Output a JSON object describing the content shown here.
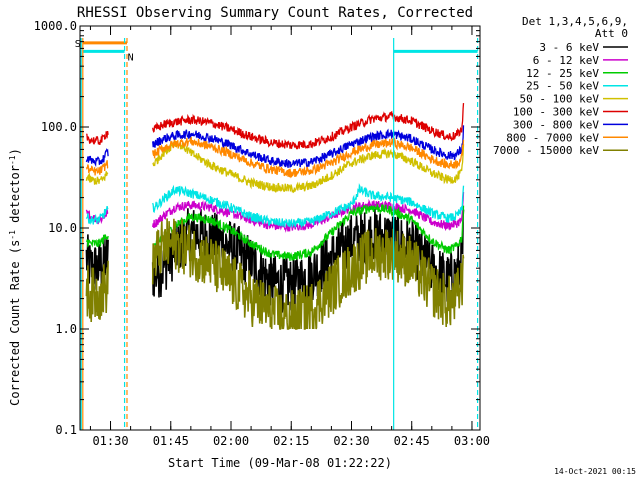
{
  "chart_data": {
    "type": "line",
    "title": "RHESSI Observing Summary Count Rates, Corrected",
    "xlabel": "Start Time (09-Mar-08 01:22:22)",
    "ylabel": "Corrected Count Rate (s⁻¹ detector⁻¹)",
    "ylabel_parts": [
      "Corrected Count Rate (s",
      "-1",
      " detector",
      "-1",
      ")"
    ],
    "y_scale": "log",
    "ylim": [
      0.1,
      1000
    ],
    "y_ticks": [
      {
        "value": 0.1,
        "label": "0.1"
      },
      {
        "value": 1,
        "label": "1.0"
      },
      {
        "value": 10,
        "label": "10.0"
      },
      {
        "value": 100,
        "label": "100.0"
      },
      {
        "value": 1000,
        "label": "1000.0"
      }
    ],
    "x_range_minutes": [
      82.4,
      182.0
    ],
    "x_ticks": [
      {
        "minute": 90,
        "label": "01:30"
      },
      {
        "minute": 105,
        "label": "01:45"
      },
      {
        "minute": 120,
        "label": "02:00"
      },
      {
        "minute": 135,
        "label": "02:15"
      },
      {
        "minute": 150,
        "label": "02:30"
      },
      {
        "minute": 165,
        "label": "02:45"
      },
      {
        "minute": 180,
        "label": "03:00"
      }
    ],
    "legend_header": [
      "Det 1,3,4,5,6,9,",
      "Att 0"
    ],
    "legend_position": "right",
    "series": [
      {
        "name": "3 - 6 keV",
        "color": "#000000",
        "points": [
          [
            84,
            5
          ],
          [
            85,
            4
          ],
          [
            87,
            4
          ],
          [
            88,
            4.5
          ],
          [
            89,
            5
          ],
          [
            101,
            3.5
          ],
          [
            103,
            4
          ],
          [
            106,
            6
          ],
          [
            110,
            9
          ],
          [
            115,
            8
          ],
          [
            120,
            6.5
          ],
          [
            125,
            4.5
          ],
          [
            130,
            3
          ],
          [
            133,
            2.7
          ],
          [
            136,
            2.8
          ],
          [
            140,
            3.5
          ],
          [
            145,
            5
          ],
          [
            150,
            7.5
          ],
          [
            155,
            8.5
          ],
          [
            160,
            8
          ],
          [
            165,
            6.5
          ],
          [
            170,
            4
          ],
          [
            174,
            3
          ],
          [
            176,
            3.5
          ],
          [
            177.5,
            4.5
          ],
          [
            178,
            12
          ]
        ]
      },
      {
        "name": "6 - 12 keV",
        "color": "#cc00cc",
        "points": [
          [
            84,
            14
          ],
          [
            85,
            13
          ],
          [
            87,
            12
          ],
          [
            88,
            12.5
          ],
          [
            89,
            14
          ],
          [
            101,
            11
          ],
          [
            103,
            13
          ],
          [
            106,
            16
          ],
          [
            110,
            17
          ],
          [
            115,
            16
          ],
          [
            120,
            14
          ],
          [
            125,
            12
          ],
          [
            130,
            10.5
          ],
          [
            135,
            10.2
          ],
          [
            140,
            10.8
          ],
          [
            145,
            13
          ],
          [
            150,
            16
          ],
          [
            155,
            17
          ],
          [
            160,
            16.5
          ],
          [
            165,
            15
          ],
          [
            170,
            11.5
          ],
          [
            174,
            10.5
          ],
          [
            176,
            11
          ],
          [
            177.5,
            12
          ],
          [
            178,
            25
          ]
        ]
      },
      {
        "name": "12 - 25 keV",
        "color": "#00cc00",
        "points": [
          [
            84,
            7.5
          ],
          [
            85,
            7
          ],
          [
            87,
            7
          ],
          [
            88,
            7.5
          ],
          [
            89,
            8.5
          ],
          [
            101,
            6.5
          ],
          [
            103,
            8
          ],
          [
            106,
            10.5
          ],
          [
            110,
            13
          ],
          [
            115,
            12
          ],
          [
            120,
            9.5
          ],
          [
            125,
            7
          ],
          [
            130,
            5.5
          ],
          [
            135,
            5.2
          ],
          [
            140,
            5.8
          ],
          [
            145,
            9
          ],
          [
            150,
            14
          ],
          [
            155,
            16
          ],
          [
            160,
            15
          ],
          [
            165,
            12
          ],
          [
            170,
            7.5
          ],
          [
            174,
            6
          ],
          [
            176,
            6.5
          ],
          [
            177.5,
            8
          ],
          [
            178,
            20
          ]
        ]
      },
      {
        "name": "25 - 50 keV",
        "color": "#00e5e5",
        "points": [
          [
            84,
            13
          ],
          [
            85,
            12
          ],
          [
            87,
            12
          ],
          [
            88,
            13
          ],
          [
            89,
            15
          ],
          [
            101,
            16
          ],
          [
            103,
            19
          ],
          [
            106,
            24
          ],
          [
            110,
            22
          ],
          [
            115,
            19
          ],
          [
            120,
            16
          ],
          [
            125,
            13
          ],
          [
            130,
            11.5
          ],
          [
            135,
            11
          ],
          [
            140,
            11.5
          ],
          [
            145,
            14
          ],
          [
            150,
            17
          ],
          [
            152,
            24
          ],
          [
            155,
            21
          ],
          [
            160,
            20
          ],
          [
            165,
            18
          ],
          [
            170,
            14
          ],
          [
            174,
            12.5
          ],
          [
            176,
            13
          ],
          [
            177.5,
            15
          ],
          [
            178,
            30
          ]
        ]
      },
      {
        "name": "50 - 100 keV",
        "color": "#d0c000",
        "points": [
          [
            84,
            32
          ],
          [
            85,
            30
          ],
          [
            87,
            29
          ],
          [
            88,
            30
          ],
          [
            89,
            34
          ],
          [
            101,
            44
          ],
          [
            103,
            55
          ],
          [
            106,
            70
          ],
          [
            108,
            65
          ],
          [
            110,
            55
          ],
          [
            115,
            42
          ],
          [
            120,
            34
          ],
          [
            125,
            28
          ],
          [
            130,
            25.5
          ],
          [
            135,
            24.5
          ],
          [
            140,
            26
          ],
          [
            145,
            33
          ],
          [
            150,
            44
          ],
          [
            155,
            52
          ],
          [
            160,
            55
          ],
          [
            165,
            46
          ],
          [
            170,
            35
          ],
          [
            174,
            30
          ],
          [
            176,
            31
          ],
          [
            177.5,
            36
          ],
          [
            178,
            70
          ]
        ]
      },
      {
        "name": "100 - 300 keV",
        "color": "#dd0000",
        "points": [
          [
            84,
            80
          ],
          [
            85,
            75
          ],
          [
            87,
            72
          ],
          [
            88,
            75
          ],
          [
            89,
            88
          ],
          [
            101,
            95
          ],
          [
            103,
            105
          ],
          [
            106,
            112
          ],
          [
            110,
            118
          ],
          [
            115,
            110
          ],
          [
            120,
            95
          ],
          [
            125,
            80
          ],
          [
            130,
            70
          ],
          [
            135,
            66
          ],
          [
            140,
            68
          ],
          [
            145,
            80
          ],
          [
            150,
            100
          ],
          [
            155,
            120
          ],
          [
            160,
            128
          ],
          [
            165,
            115
          ],
          [
            170,
            92
          ],
          [
            174,
            80
          ],
          [
            176,
            82
          ],
          [
            177.5,
            95
          ],
          [
            178,
            190
          ]
        ]
      },
      {
        "name": "300 - 800 keV",
        "color": "#0000dd",
        "points": [
          [
            84,
            50
          ],
          [
            85,
            47
          ],
          [
            87,
            45
          ],
          [
            88,
            47
          ],
          [
            89,
            55
          ],
          [
            101,
            68
          ],
          [
            103,
            76
          ],
          [
            106,
            82
          ],
          [
            110,
            86
          ],
          [
            115,
            78
          ],
          [
            120,
            66
          ],
          [
            125,
            54
          ],
          [
            130,
            46
          ],
          [
            135,
            43
          ],
          [
            140,
            45
          ],
          [
            145,
            54
          ],
          [
            150,
            68
          ],
          [
            155,
            80
          ],
          [
            160,
            86
          ],
          [
            165,
            76
          ],
          [
            170,
            60
          ],
          [
            174,
            52
          ],
          [
            176,
            53
          ],
          [
            177.5,
            60
          ],
          [
            178,
            110
          ]
        ]
      },
      {
        "name": "800 - 7000 keV",
        "color": "#ff8800",
        "points": [
          [
            84,
            40
          ],
          [
            85,
            37
          ],
          [
            87,
            36
          ],
          [
            88,
            38
          ],
          [
            89,
            43
          ],
          [
            101,
            54
          ],
          [
            103,
            62
          ],
          [
            106,
            68
          ],
          [
            110,
            72
          ],
          [
            115,
            64
          ],
          [
            120,
            54
          ],
          [
            125,
            44
          ],
          [
            130,
            38
          ],
          [
            135,
            35
          ],
          [
            140,
            37
          ],
          [
            145,
            44
          ],
          [
            150,
            56
          ],
          [
            155,
            66
          ],
          [
            160,
            70
          ],
          [
            165,
            62
          ],
          [
            170,
            48
          ],
          [
            174,
            42
          ],
          [
            176,
            43
          ],
          [
            177.5,
            49
          ],
          [
            178,
            90
          ]
        ]
      },
      {
        "name": "7000 - 15000 keV",
        "color": "#808000",
        "points": [
          [
            84,
            2.5
          ],
          [
            85,
            2.2
          ],
          [
            87,
            2.2
          ],
          [
            88,
            2.4
          ],
          [
            89,
            2.6
          ],
          [
            101,
            5
          ],
          [
            103,
            6.5
          ],
          [
            106,
            7
          ],
          [
            110,
            6
          ],
          [
            115,
            4.5
          ],
          [
            120,
            3
          ],
          [
            125,
            2
          ],
          [
            130,
            1.5
          ],
          [
            133,
            1.3
          ],
          [
            136,
            1.3
          ],
          [
            140,
            1.6
          ],
          [
            145,
            2.5
          ],
          [
            150,
            4
          ],
          [
            155,
            5.5
          ],
          [
            160,
            5.8
          ],
          [
            165,
            4.5
          ],
          [
            170,
            2.5
          ],
          [
            174,
            1.8
          ],
          [
            176,
            2
          ],
          [
            177.5,
            2.8
          ],
          [
            178,
            8
          ]
        ]
      }
    ],
    "bars": [
      {
        "label": "S",
        "color": "#ff8800",
        "value": 680,
        "x_start": 83.1,
        "x_end": 94.1
      },
      {
        "label": "N",
        "color": "#00e5e5",
        "value": 560,
        "x_start": 83.1,
        "x_end": 93.5
      },
      {
        "label": "",
        "color": "#00e5e5",
        "value": 560,
        "x_start": 160.5,
        "x_end": 181.4
      }
    ],
    "markers": [
      {
        "minute": 82.7,
        "color": "#00e5e5",
        "style": "solid"
      },
      {
        "minute": 83.1,
        "color": "#ff8800",
        "style": "solid"
      },
      {
        "minute": 93.5,
        "color": "#00e5e5",
        "style": "dashed"
      },
      {
        "minute": 94.1,
        "color": "#ff8800",
        "style": "dashed"
      },
      {
        "minute": 160.5,
        "color": "#00e5e5",
        "style": "solid"
      },
      {
        "minute": 181.4,
        "color": "#00e5e5",
        "style": "dashed"
      }
    ],
    "data_gap_minutes": [
      89.5,
      100.5
    ]
  },
  "footer_timestamp": "14-Oct-2021 00:15"
}
